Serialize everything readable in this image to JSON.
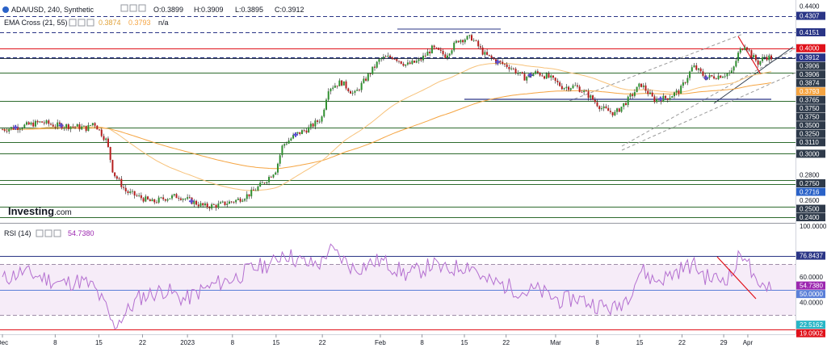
{
  "chart_data": {
    "type": "line",
    "symbol_legend": "ADA/USD, 240, Synthetic",
    "ohlc": {
      "open": "O:0.3899",
      "high": "H:0.3909",
      "low": "L:0.3895",
      "close": "C:0.3912"
    },
    "ema_legend": {
      "label": "EMA Cross (21, 55)",
      "fast": "0.3874",
      "slow": "0.3793",
      "na": "n/a"
    },
    "rsi_legend": {
      "label": "RSI (14)",
      "value": "54.7380"
    },
    "watermark_main": "Investing",
    "watermark_suffix": ".com",
    "x_ticks": [
      {
        "label": "Dec",
        "t": 0.0
      },
      {
        "label": "8",
        "t": 8.1
      },
      {
        "label": "15",
        "t": 14.8
      },
      {
        "label": "22",
        "t": 21.5
      },
      {
        "label": "2023",
        "t": 28.4
      },
      {
        "label": "8",
        "t": 35.3
      },
      {
        "label": "15",
        "t": 42.0
      },
      {
        "label": "22",
        "t": 49.1
      },
      {
        "label": "Feb",
        "t": 58.0
      },
      {
        "label": "8",
        "t": 64.4
      },
      {
        "label": "15",
        "t": 70.9
      },
      {
        "label": "22",
        "t": 77.3
      },
      {
        "label": "Mar",
        "t": 84.9
      },
      {
        "label": "8",
        "t": 91.3
      },
      {
        "label": "15",
        "t": 97.8
      },
      {
        "label": "22",
        "t": 104.3
      },
      {
        "label": "29",
        "t": 110.7
      },
      {
        "label": "Apr",
        "t": 114.4
      }
    ],
    "price_range": [
      0.2345,
      0.4457
    ],
    "rsi_range": [
      15,
      102
    ],
    "price_axis_labels": [
      {
        "value": 0.44,
        "label": "0.4400",
        "bg": "",
        "fg": "#131722"
      },
      {
        "value": 0.4307,
        "label": "0.4307",
        "bg": "#2a3586",
        "fg": "#ffffff"
      },
      {
        "value": 0.4151,
        "label": "0.4151",
        "bg": "#2a3586",
        "fg": "#ffffff"
      },
      {
        "value": 0.4,
        "label": "0.4000",
        "bg": "#e0111a",
        "fg": "#ffffff"
      },
      {
        "value": 0.3912,
        "label": "0.3912",
        "bg": "#2a3586",
        "fg": "#ffffff"
      },
      {
        "value": 0.3906,
        "label": "0.3906",
        "bg": "#2e3a4a",
        "fg": "#ffffff"
      },
      {
        "value": 0.3906,
        "label": "0.3906",
        "bg": "#2e3a4a",
        "fg": "#ffffff"
      },
      {
        "value": 0.3874,
        "label": "0.3874",
        "bg": "#2e3a4a",
        "fg": "#ffffff"
      },
      {
        "value": 0.3793,
        "label": "0.3793",
        "bg": "#f5a441",
        "fg": "#ffffff"
      },
      {
        "value": 0.3765,
        "label": "0.3765",
        "bg": "#2e3a4a",
        "fg": "#ffffff"
      },
      {
        "value": 0.375,
        "label": "0.3750",
        "bg": "#2e3a4a",
        "fg": "#ffffff"
      },
      {
        "value": 0.375,
        "label": "0.3750",
        "bg": "#2e3a4a",
        "fg": "#ffffff"
      },
      {
        "value": 0.35,
        "label": "0.3500",
        "bg": "#2e3a4a",
        "fg": "#ffffff"
      },
      {
        "value": 0.325,
        "label": "0.3250",
        "bg": "#2e3a4a",
        "fg": "#ffffff"
      },
      {
        "value": 0.311,
        "label": "0.3110",
        "bg": "#2e3a4a",
        "fg": "#ffffff"
      },
      {
        "value": 0.3,
        "label": "0.3000",
        "bg": "#2e3a4a",
        "fg": "#ffffff"
      },
      {
        "value": 0.28,
        "label": "0.2800",
        "bg": "",
        "fg": "#131722"
      },
      {
        "value": 0.275,
        "label": "0.2750",
        "bg": "#2e3a4a",
        "fg": "#ffffff"
      },
      {
        "value": 0.2716,
        "label": "0.2716",
        "bg": "#2a62c8",
        "fg": "#ffffff"
      },
      {
        "value": 0.26,
        "label": "0.2600",
        "bg": "",
        "fg": "#131722"
      },
      {
        "value": 0.25,
        "label": "0.2500",
        "bg": "#2e3a4a",
        "fg": "#ffffff"
      },
      {
        "value": 0.24,
        "label": "0.2400",
        "bg": "#2e3a4a",
        "fg": "#ffffff"
      }
    ],
    "rsi_axis_labels": [
      {
        "value": 100,
        "label": "100.0000",
        "bg": "",
        "fg": "#131722"
      },
      {
        "value": 76.8437,
        "label": "76.8437",
        "bg": "#2a3586",
        "fg": "#ffffff"
      },
      {
        "value": 60,
        "label": "60.0000",
        "bg": "",
        "fg": "#131722"
      },
      {
        "value": 54.738,
        "label": "54.7380",
        "bg": "#9c27b0",
        "fg": "#ffffff"
      },
      {
        "value": 50,
        "label": "50.0000",
        "bg": "#5a7fd8",
        "fg": "#ffffff"
      },
      {
        "value": 40,
        "label": "40.0000",
        "bg": "",
        "fg": "#131722"
      },
      {
        "value": 22.5162,
        "label": "22.5162",
        "bg": "#29b6c6",
        "fg": "#ffffff"
      },
      {
        "value": 19.0902,
        "label": "19.0902",
        "bg": "#e0111a",
        "fg": "#ffffff"
      }
    ],
    "horizontal_levels": [
      {
        "value": 0.4307,
        "color": "#2a3586",
        "style": "dashed"
      },
      {
        "value": 0.4151,
        "color": "#2a3586",
        "style": "dashed"
      },
      {
        "value": 0.4,
        "color": "#e0111a",
        "style": "solid"
      },
      {
        "value": 0.3912,
        "color": "#2a3586",
        "style": "dashed"
      },
      {
        "value": 0.3906,
        "color": "#2e3a4a",
        "style": "solid"
      },
      {
        "value": 0.3765,
        "color": "#2e6b2e",
        "style": "solid"
      },
      {
        "value": 0.35,
        "color": "#2e6b2e",
        "style": "solid"
      },
      {
        "value": 0.325,
        "color": "#2e6b2e",
        "style": "solid"
      },
      {
        "value": 0.311,
        "color": "#2e6b2e",
        "style": "solid"
      },
      {
        "value": 0.3,
        "color": "#2e6b2e",
        "style": "solid"
      },
      {
        "value": 0.275,
        "color": "#2e6b2e",
        "style": "solid"
      },
      {
        "value": 0.2716,
        "color": "#2e6b2e",
        "style": "solid"
      },
      {
        "value": 0.25,
        "color": "#2e6b2e",
        "style": "solid"
      },
      {
        "value": 0.24,
        "color": "#2e6b2e",
        "style": "solid"
      }
    ],
    "rsi_levels": [
      {
        "value": 76.8437,
        "color": "#2a3586",
        "style": "solid"
      },
      {
        "value": 70,
        "color": "#9e8ea8",
        "style": "dashed"
      },
      {
        "value": 50,
        "color": "#5a7fd8",
        "style": "solid"
      },
      {
        "value": 30,
        "color": "#9e8ea8",
        "style": "dashed"
      },
      {
        "value": 19.0902,
        "color": "#e0111a",
        "style": "solid"
      }
    ],
    "rsi_band": [
      30,
      70
    ],
    "price_anchors": [
      [
        0,
        0.323
      ],
      [
        3,
        0.326
      ],
      [
        6,
        0.33
      ],
      [
        8,
        0.327
      ],
      [
        11,
        0.326
      ],
      [
        13,
        0.324
      ],
      [
        14,
        0.33
      ],
      [
        16,
        0.312
      ],
      [
        17,
        0.282
      ],
      [
        19,
        0.264
      ],
      [
        21,
        0.259
      ],
      [
        23,
        0.254
      ],
      [
        25,
        0.258
      ],
      [
        27,
        0.26
      ],
      [
        29,
        0.255
      ],
      [
        31,
        0.25
      ],
      [
        33,
        0.251
      ],
      [
        36,
        0.256
      ],
      [
        38,
        0.262
      ],
      [
        40,
        0.272
      ],
      [
        42,
        0.285
      ],
      [
        43,
        0.308
      ],
      [
        45,
        0.318
      ],
      [
        47,
        0.324
      ],
      [
        49,
        0.334
      ],
      [
        50,
        0.362
      ],
      [
        52,
        0.368
      ],
      [
        54,
        0.356
      ],
      [
        56,
        0.373
      ],
      [
        58,
        0.39
      ],
      [
        60,
        0.392
      ],
      [
        62,
        0.384
      ],
      [
        64,
        0.388
      ],
      [
        66,
        0.4
      ],
      [
        68,
        0.393
      ],
      [
        70,
        0.408
      ],
      [
        72,
        0.41
      ],
      [
        74,
        0.394
      ],
      [
        76,
        0.387
      ],
      [
        78,
        0.382
      ],
      [
        80,
        0.372
      ],
      [
        82,
        0.377
      ],
      [
        84,
        0.372
      ],
      [
        86,
        0.363
      ],
      [
        88,
        0.364
      ],
      [
        90,
        0.355
      ],
      [
        92,
        0.343
      ],
      [
        94,
        0.338
      ],
      [
        96,
        0.351
      ],
      [
        98,
        0.366
      ],
      [
        100,
        0.351
      ],
      [
        102,
        0.353
      ],
      [
        104,
        0.36
      ],
      [
        106,
        0.383
      ],
      [
        108,
        0.372
      ],
      [
        110,
        0.374
      ],
      [
        112,
        0.377
      ],
      [
        113,
        0.396
      ],
      [
        114,
        0.404
      ],
      [
        115,
        0.393
      ],
      [
        116,
        0.386
      ],
      [
        117,
        0.392
      ],
      [
        118,
        0.391
      ]
    ],
    "rsi_anchors": [
      [
        0,
        58
      ],
      [
        3,
        64
      ],
      [
        6,
        60
      ],
      [
        9,
        55
      ],
      [
        12,
        57
      ],
      [
        14,
        52
      ],
      [
        16,
        35
      ],
      [
        17,
        21
      ],
      [
        19,
        32
      ],
      [
        21,
        44
      ],
      [
        23,
        47
      ],
      [
        25,
        50
      ],
      [
        28,
        42
      ],
      [
        30,
        48
      ],
      [
        33,
        55
      ],
      [
        36,
        60
      ],
      [
        38,
        66
      ],
      [
        40,
        69
      ],
      [
        42,
        72
      ],
      [
        43,
        80
      ],
      [
        45,
        74
      ],
      [
        47,
        70
      ],
      [
        49,
        71
      ],
      [
        50,
        82
      ],
      [
        52,
        75
      ],
      [
        54,
        66
      ],
      [
        56,
        70
      ],
      [
        58,
        73
      ],
      [
        60,
        68
      ],
      [
        62,
        62
      ],
      [
        64,
        65
      ],
      [
        66,
        70
      ],
      [
        68,
        65
      ],
      [
        70,
        68
      ],
      [
        72,
        70
      ],
      [
        74,
        57
      ],
      [
        76,
        55
      ],
      [
        78,
        52
      ],
      [
        80,
        48
      ],
      [
        82,
        50
      ],
      [
        84,
        45
      ],
      [
        86,
        41
      ],
      [
        88,
        44
      ],
      [
        90,
        40
      ],
      [
        92,
        37
      ],
      [
        94,
        35
      ],
      [
        96,
        45
      ],
      [
        98,
        66
      ],
      [
        100,
        57
      ],
      [
        102,
        60
      ],
      [
        104,
        66
      ],
      [
        106,
        70
      ],
      [
        108,
        60
      ],
      [
        110,
        58
      ],
      [
        112,
        62
      ],
      [
        113,
        75
      ],
      [
        114,
        80
      ],
      [
        115,
        62
      ],
      [
        116,
        48
      ],
      [
        117,
        55
      ],
      [
        118,
        54.7
      ]
    ],
    "markers_t": [
      2,
      9,
      29,
      45,
      76,
      81,
      101,
      108
    ]
  }
}
